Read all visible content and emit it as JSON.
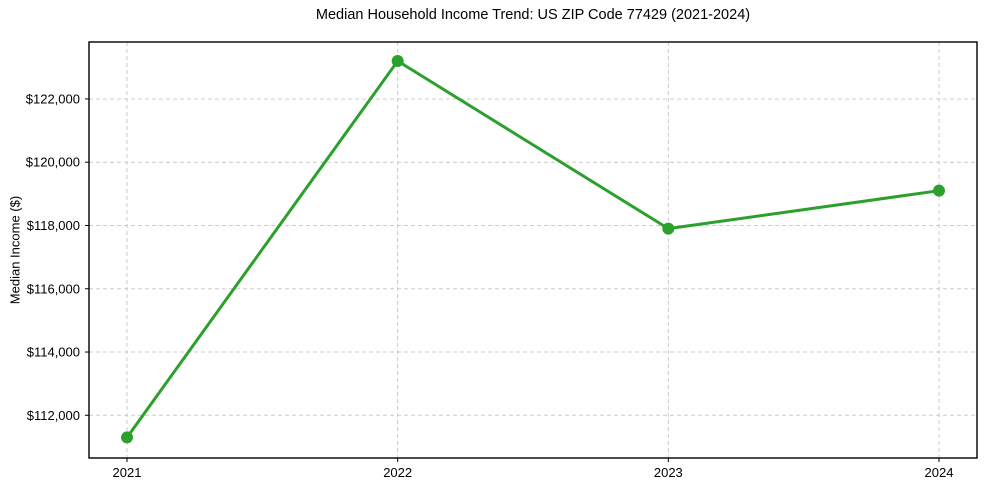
{
  "page": {
    "background": "#ffffff"
  },
  "chart_data": {
    "type": "line",
    "title": "Median Household Income Trend: US ZIP Code 77429 (2021-2024)",
    "xlabel": "",
    "ylabel": "Median Income ($)",
    "categories": [
      "2021",
      "2022",
      "2023",
      "2024"
    ],
    "series": [
      {
        "name": "Median Household Income",
        "values": [
          111300,
          123200,
          117900,
          119100
        ],
        "color": "#2ca02c",
        "marker": "circle",
        "marker_radius": 6,
        "line_width": 3
      }
    ],
    "ylim": [
      110650,
      123800
    ],
    "yticks": [
      112000,
      114000,
      116000,
      118000,
      120000,
      122000
    ],
    "ytick_labels": [
      "$112,000",
      "$114,000",
      "$116,000",
      "$118,000",
      "$120,000",
      "$122,000"
    ],
    "grid": true,
    "grid_color": "#cccccc",
    "grid_style": "dashed",
    "spine_color": "#000000",
    "tick_color": "#000000",
    "legend": "none"
  }
}
